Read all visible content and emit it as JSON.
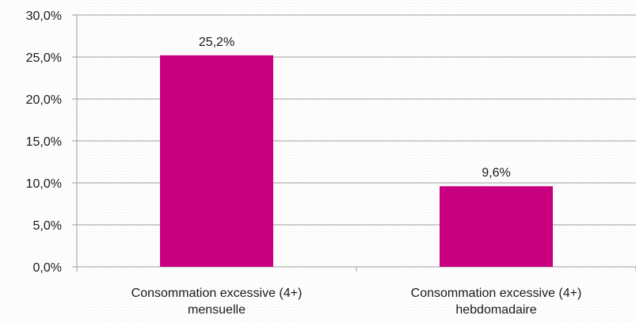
{
  "chart_data": {
    "type": "bar",
    "categories": [
      [
        "Consommation excessive (4+)",
        "mensuelle"
      ],
      [
        "Consommation excessive (4+)",
        "hebdomadaire"
      ]
    ],
    "values": [
      25.2,
      9.6
    ],
    "data_labels": [
      "25,2%",
      "9,6%"
    ],
    "ylim": [
      0,
      30
    ],
    "yticks": [
      0,
      5,
      10,
      15,
      20,
      25,
      30
    ],
    "ytick_labels": [
      "0,0%",
      "5,0%",
      "10,0%",
      "15,0%",
      "20,0%",
      "25,0%",
      "30,0%"
    ],
    "bar_color": "#c8007f",
    "grid": true,
    "title": "",
    "xlabel": "",
    "ylabel": ""
  }
}
